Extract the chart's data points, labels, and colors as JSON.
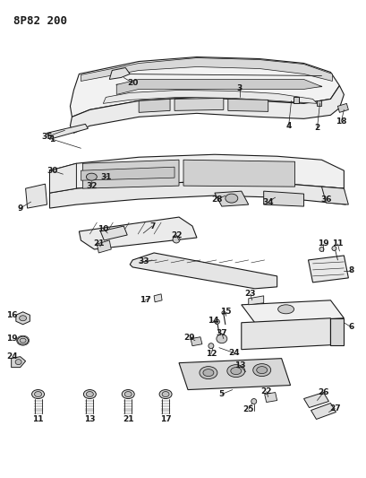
{
  "title": "8P82 200",
  "bg_color": "#ffffff",
  "line_color": "#1a1a1a",
  "fig_width": 4.09,
  "fig_height": 5.33,
  "dpi": 100
}
